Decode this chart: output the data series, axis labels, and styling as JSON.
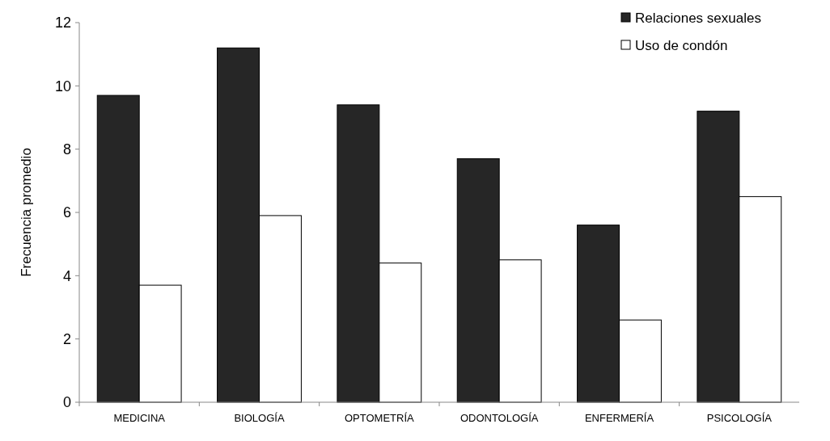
{
  "chart_data": {
    "type": "bar",
    "ylabel": "Frecuencia promedio",
    "categories": [
      "MEDICINA",
      "BIOLOGÍA",
      "OPTOMETRÍA",
      "ODONTOLOGÍA",
      "ENFERMERÍA",
      "PSICOLOGÍA"
    ],
    "series": [
      {
        "name": "Relaciones sexuales",
        "color": "#262626",
        "values": [
          9.7,
          11.2,
          9.4,
          7.7,
          5.6,
          9.2
        ]
      },
      {
        "name": "Uso de condón",
        "color": "#ffffff",
        "values": [
          3.7,
          5.9,
          4.4,
          4.5,
          2.6,
          6.5
        ]
      }
    ],
    "ylim": [
      0,
      12
    ],
    "yticks": [
      0,
      2,
      4,
      6,
      8,
      10,
      12
    ],
    "legend": "top right"
  }
}
